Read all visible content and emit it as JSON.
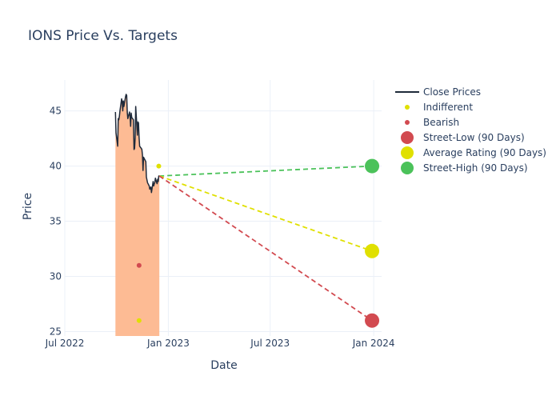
{
  "chart_data": {
    "type": "line",
    "title": "IONS Price Vs. Targets",
    "xlabel": "Date",
    "ylabel": "Price",
    "xlim": [
      "2022-07-01",
      "2024-01-15"
    ],
    "ylim": [
      24.6,
      47.8
    ],
    "x_ticks": [
      {
        "date": "2022-07-01",
        "label": "Jul 2022"
      },
      {
        "date": "2023-01-01",
        "label": "Jan 2023"
      },
      {
        "date": "2023-07-01",
        "label": "Jul 2023"
      },
      {
        "date": "2024-01-01",
        "label": "Jan 2024"
      }
    ],
    "y_ticks": [
      25,
      30,
      35,
      40,
      45
    ],
    "close_prices": {
      "name": "Close Prices",
      "color": "#1f2a3a",
      "fill_color": "#fdbb94",
      "points": [
        [
          "2022-09-29",
          44.9
        ],
        [
          "2022-09-30",
          43.0
        ],
        [
          "2022-10-03",
          41.8
        ],
        [
          "2022-10-04",
          44.3
        ],
        [
          "2022-10-05",
          44.2
        ],
        [
          "2022-10-06",
          44.5
        ],
        [
          "2022-10-07",
          45.0
        ],
        [
          "2022-10-10",
          46.1
        ],
        [
          "2022-10-11",
          45.8
        ],
        [
          "2022-10-12",
          45.0
        ],
        [
          "2022-10-13",
          45.9
        ],
        [
          "2022-10-14",
          45.4
        ],
        [
          "2022-10-17",
          46.3
        ],
        [
          "2022-10-18",
          46.5
        ],
        [
          "2022-10-19",
          46.4
        ],
        [
          "2022-10-20",
          44.9
        ],
        [
          "2022-10-21",
          44.3
        ],
        [
          "2022-10-24",
          44.9
        ],
        [
          "2022-10-25",
          44.5
        ],
        [
          "2022-10-26",
          43.6
        ],
        [
          "2022-10-27",
          44.8
        ],
        [
          "2022-10-28",
          44.4
        ],
        [
          "2022-10-31",
          44.2
        ],
        [
          "2022-11-01",
          41.5
        ],
        [
          "2022-11-02",
          41.6
        ],
        [
          "2022-11-03",
          42.5
        ],
        [
          "2022-11-04",
          45.4
        ],
        [
          "2022-11-07",
          42.8
        ],
        [
          "2022-11-08",
          44.0
        ],
        [
          "2022-11-09",
          43.9
        ],
        [
          "2022-11-10",
          42.6
        ],
        [
          "2022-11-11",
          41.8
        ],
        [
          "2022-11-14",
          41.6
        ],
        [
          "2022-11-15",
          41.5
        ],
        [
          "2022-11-16",
          41.0
        ],
        [
          "2022-11-17",
          39.6
        ],
        [
          "2022-11-18",
          40.8
        ],
        [
          "2022-11-21",
          40.5
        ],
        [
          "2022-11-22",
          40.4
        ],
        [
          "2022-11-23",
          39.0
        ],
        [
          "2022-11-25",
          38.5
        ],
        [
          "2022-11-28",
          38.2
        ],
        [
          "2022-11-29",
          37.9
        ],
        [
          "2022-11-30",
          38.0
        ],
        [
          "2022-12-01",
          38.1
        ],
        [
          "2022-12-02",
          37.6
        ],
        [
          "2022-12-05",
          38.6
        ],
        [
          "2022-12-06",
          38.2
        ],
        [
          "2022-12-07",
          38.4
        ],
        [
          "2022-12-08",
          38.5
        ],
        [
          "2022-12-09",
          38.9
        ],
        [
          "2022-12-12",
          38.4
        ],
        [
          "2022-12-13",
          38.8
        ],
        [
          "2022-12-14",
          38.6
        ],
        [
          "2022-12-15",
          39.1
        ],
        [
          "2022-12-16",
          39.1
        ]
      ]
    },
    "targets": {
      "start": {
        "date": "2022-12-16",
        "value": 39.1
      },
      "end_date": "2023-12-29",
      "street_low": {
        "name": "Street-Low (90 Days)",
        "value": 26.0,
        "color": "#d24a50"
      },
      "average": {
        "name": "Average Rating (90 Days)",
        "value": 32.3,
        "color": "#e0e000"
      },
      "street_high": {
        "name": "Street-High (90 Days)",
        "value": 40.0,
        "color": "#4bc25a"
      }
    },
    "ratings": [
      {
        "category": "Indifferent",
        "date": "2022-12-15",
        "value": 40.0,
        "color": "#e0e000"
      },
      {
        "category": "Indifferent",
        "date": "2022-11-10",
        "value": 26.0,
        "color": "#e0e000"
      },
      {
        "category": "Bearish",
        "date": "2022-11-10",
        "value": 31.0,
        "color": "#d24a50"
      }
    ],
    "legend": {
      "position": "top-right",
      "items": [
        {
          "label": "Close Prices",
          "symbol": "line",
          "color": "#1f2a3a"
        },
        {
          "label": "Indifferent",
          "symbol": "small-dot",
          "color": "#e0e000"
        },
        {
          "label": "Bearish",
          "symbol": "small-dot",
          "color": "#d24a50"
        },
        {
          "label": "Street-Low (90 Days)",
          "symbol": "big-dot",
          "color": "#d24a50"
        },
        {
          "label": "Average Rating (90 Days)",
          "symbol": "big-dot",
          "color": "#e0e000"
        },
        {
          "label": "Street-High (90 Days)",
          "symbol": "big-dot",
          "color": "#4bc25a"
        }
      ]
    }
  }
}
